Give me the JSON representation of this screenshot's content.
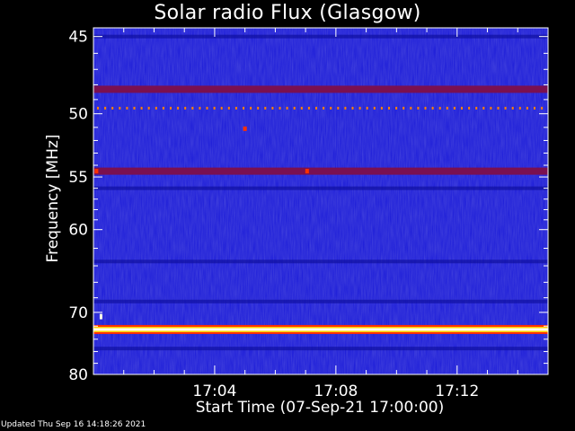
{
  "chart_data": {
    "type": "heatmap",
    "title": "Solar radio Flux (Glasgow)",
    "ylabel": "Frequency [MHz]",
    "xlabel": "Start Time (07-Sep-21 17:00:00)",
    "y_ticks": [
      45,
      50,
      55,
      60,
      70,
      80
    ],
    "y_range": [
      44.5,
      80
    ],
    "y_scale": "reciprocal",
    "x_ticks": [
      "17:04",
      "17:08",
      "17:12"
    ],
    "x_tick_minutes": [
      4,
      8,
      12
    ],
    "x_range_minutes": [
      0,
      15
    ],
    "colors": {
      "background": "#000000",
      "field": "#1a1ad8",
      "band_dark": "#1010a0",
      "band_red": "#7a1050",
      "band_hot": "#ffffe8",
      "band_yellow": "#ffd000",
      "band_orange": "#ff8000",
      "spot_red": "#ff3000",
      "axis": "#ffffff"
    },
    "bands": [
      {
        "freq": 45.0,
        "level": "dark"
      },
      {
        "freq": 48.3,
        "level": "red"
      },
      {
        "freq": 49.6,
        "level": "dots"
      },
      {
        "freq": 54.5,
        "level": "red"
      },
      {
        "freq": 56.0,
        "level": "dark"
      },
      {
        "freq": 63.5,
        "level": "dark"
      },
      {
        "freq": 68.5,
        "level": "dark"
      },
      {
        "freq": 72.5,
        "level": "hot"
      },
      {
        "freq": 75.5,
        "level": "dark"
      }
    ]
  },
  "footer": "Updated Thu Sep 16 14:18:26 2021"
}
